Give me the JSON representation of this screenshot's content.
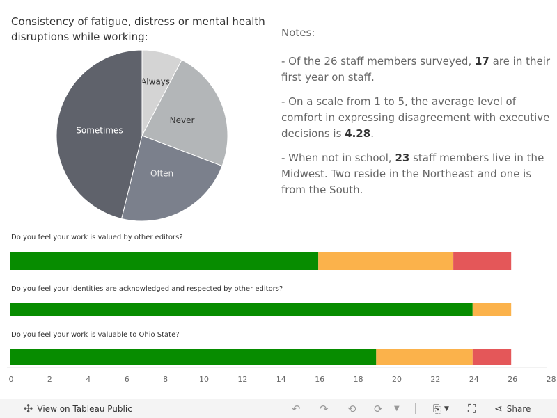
{
  "pie": {
    "title": "Consistency of fatigue, distress or mental health disruptions while working:",
    "slices": [
      {
        "label": "Always",
        "value": 2,
        "color": "#d4d4d4",
        "text_color": "#333333"
      },
      {
        "label": "Never",
        "value": 6,
        "color": "#b3b6b8",
        "text_color": "#333333"
      },
      {
        "label": "Often",
        "value": 6,
        "color": "#7b808c",
        "text_color": "#eeeeee"
      },
      {
        "label": "Sometimes",
        "value": 12,
        "color": "#5f626b",
        "text_color": "#ffffff"
      }
    ]
  },
  "notes": {
    "title": "Notes:",
    "p1": {
      "a": "- Of the 26 staff members surveyed, ",
      "b": "17",
      "c": " are in their first year on staff."
    },
    "p2": {
      "a": "- On a scale from 1 to 5, the average level of comfort in expressing disagreement with executive decisions is ",
      "b": "4.28",
      "c": "."
    },
    "p3": {
      "a": "- When not in school, ",
      "b": "23",
      "c": " staff members live in the Midwest. Two reside in the Northeast and one is from the South."
    }
  },
  "chart_data": {
    "type": "bar",
    "orientation": "horizontal",
    "stacked": true,
    "categories": [
      "Do you feel your work is valued by other editors?",
      "Do you feel your identities are acknowledged and respected by other editors?",
      "Do you feel your work is valuable to Ohio State?"
    ],
    "series": [
      {
        "name": "green",
        "color": "#078c00",
        "values": [
          16,
          24,
          19
        ]
      },
      {
        "name": "orange",
        "color": "#fbb24b",
        "values": [
          7,
          2,
          5
        ]
      },
      {
        "name": "red",
        "color": "#e45759",
        "values": [
          3,
          0,
          2
        ]
      }
    ],
    "xlim": [
      0,
      28
    ],
    "xticks": [
      "0",
      "2",
      "4",
      "6",
      "8",
      "10",
      "12",
      "14",
      "16",
      "18",
      "20",
      "22",
      "24",
      "26",
      "28"
    ]
  },
  "toolbar": {
    "view_label": "View on Tableau Public",
    "share_label": "Share"
  }
}
